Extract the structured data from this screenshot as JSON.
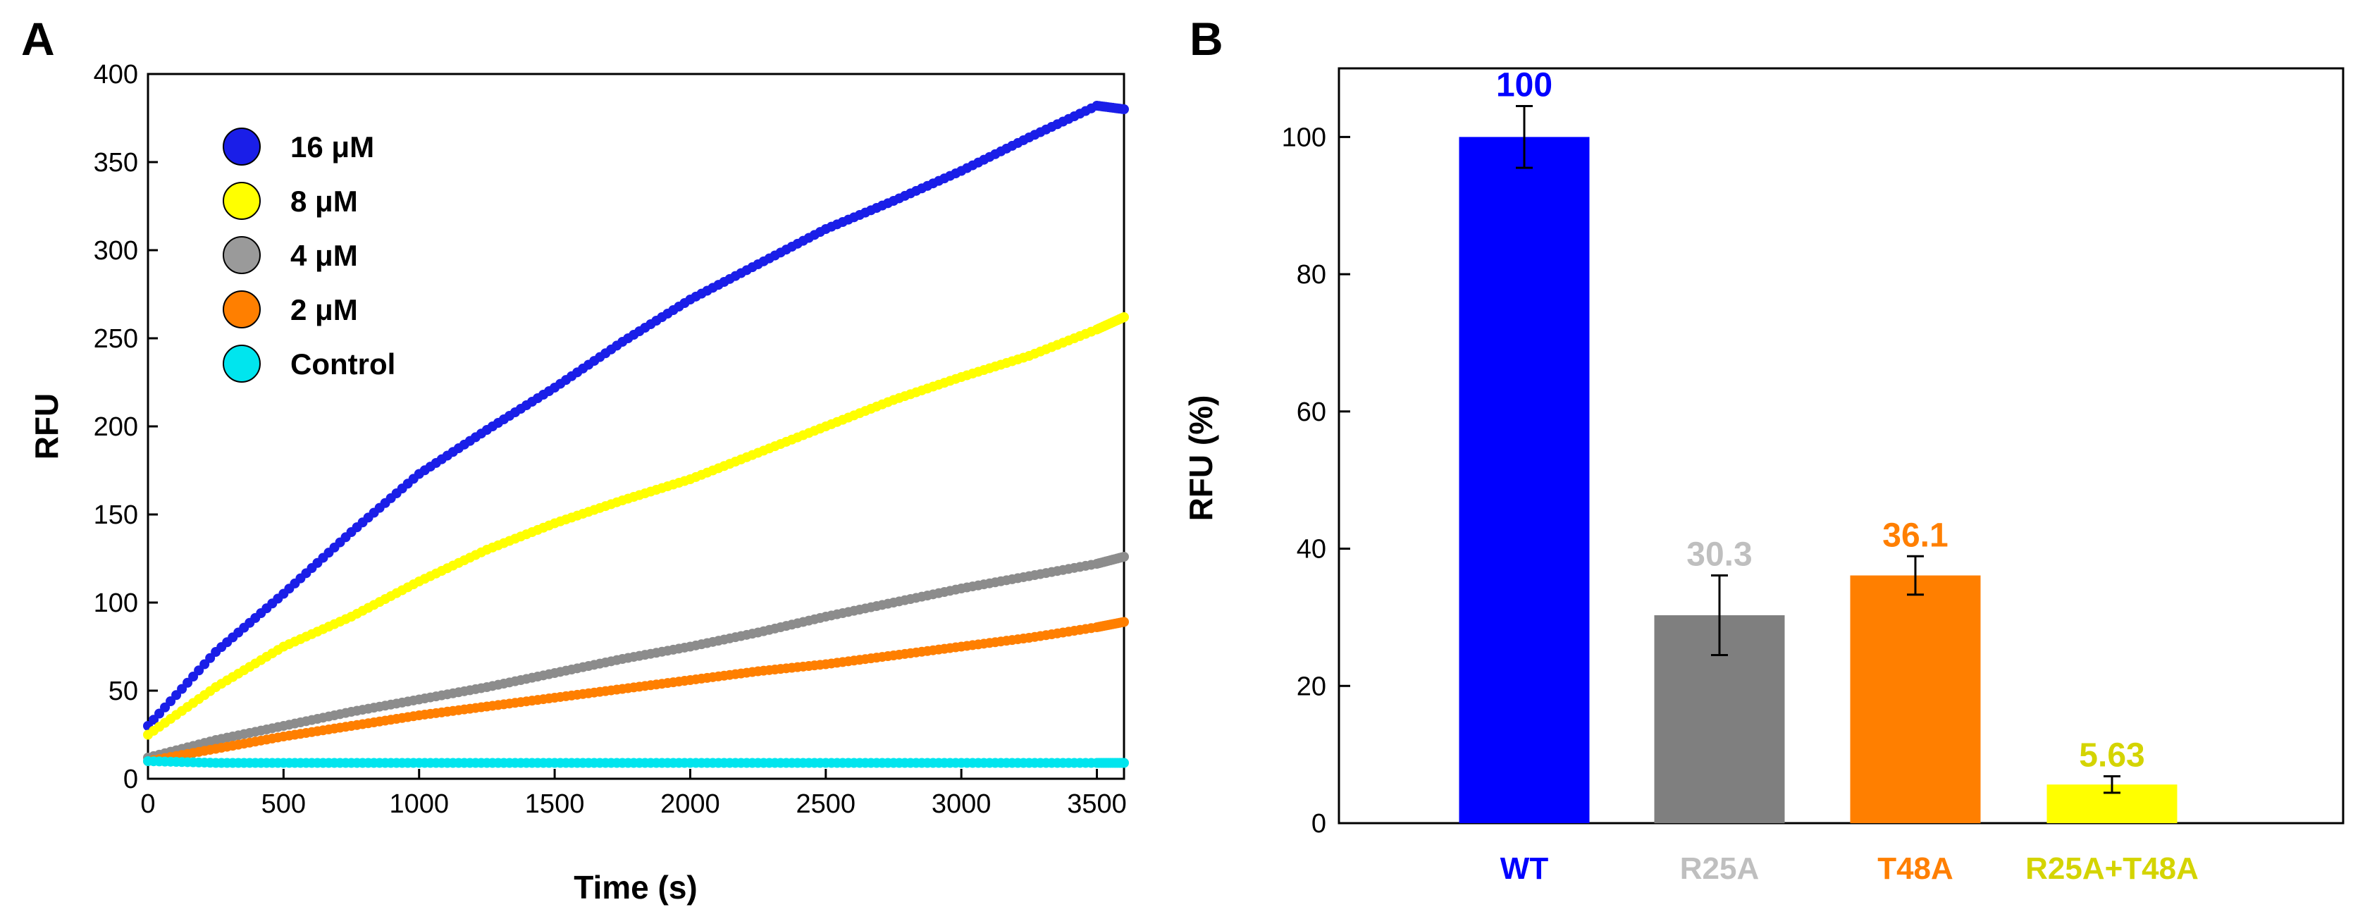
{
  "panels": {
    "a_letter": "A",
    "b_letter": "B"
  },
  "chart_data": [
    {
      "type": "scatter",
      "xlabel": "Time (s)",
      "ylabel": "RFU",
      "xlim": [
        0,
        3600
      ],
      "ylim": [
        0,
        400
      ],
      "xticks": [
        0,
        500,
        1000,
        1500,
        2000,
        2500,
        3000,
        3500
      ],
      "yticks": [
        0,
        50,
        100,
        150,
        200,
        250,
        300,
        350,
        400
      ],
      "legend": [
        {
          "label": "16 μM",
          "color": "#1a1ee8"
        },
        {
          "label": "8 μM",
          "color": "#ffff00"
        },
        {
          "label": "4 μM",
          "color": "#9a9a9a"
        },
        {
          "label": "2 μM",
          "color": "#ff7f00"
        },
        {
          "label": "Control",
          "color": "#00e5ee"
        }
      ],
      "series": [
        {
          "name": "16 μM",
          "color": "#1a1ee8",
          "x": [
            0,
            250,
            500,
            750,
            1000,
            1250,
            1500,
            1750,
            2000,
            2250,
            2500,
            2750,
            3000,
            3250,
            3500,
            3600
          ],
          "y": [
            30,
            72,
            105,
            140,
            173,
            198,
            222,
            248,
            272,
            292,
            312,
            328,
            345,
            364,
            382,
            380
          ]
        },
        {
          "name": "8 μM",
          "color": "#ffff00",
          "x": [
            0,
            250,
            500,
            750,
            1000,
            1250,
            1500,
            1750,
            2000,
            2250,
            2500,
            2750,
            3000,
            3250,
            3500,
            3600
          ],
          "y": [
            25,
            52,
            75,
            92,
            112,
            130,
            145,
            158,
            170,
            185,
            200,
            215,
            228,
            240,
            255,
            262
          ]
        },
        {
          "name": "4 μM",
          "color": "#8c8c8c",
          "x": [
            0,
            250,
            500,
            750,
            1000,
            1250,
            1500,
            1750,
            2000,
            2250,
            2500,
            2750,
            3000,
            3250,
            3500,
            3600
          ],
          "y": [
            12,
            22,
            30,
            38,
            45,
            52,
            60,
            68,
            75,
            83,
            92,
            100,
            108,
            115,
            122,
            126
          ]
        },
        {
          "name": "2 μM",
          "color": "#ff7f00",
          "x": [
            0,
            250,
            500,
            750,
            1000,
            1250,
            1500,
            1750,
            2000,
            2250,
            2500,
            2750,
            3000,
            3250,
            3500,
            3600
          ],
          "y": [
            10,
            17,
            24,
            30,
            36,
            41,
            46,
            51,
            56,
            61,
            65,
            70,
            75,
            80,
            86,
            89
          ]
        },
        {
          "name": "Control",
          "color": "#00e5ee",
          "x": [
            0,
            250,
            500,
            750,
            1000,
            1250,
            1500,
            1750,
            2000,
            2250,
            2500,
            2750,
            3000,
            3250,
            3500,
            3600
          ],
          "y": [
            10,
            9,
            9,
            9,
            9,
            9,
            9,
            9,
            9,
            9,
            9,
            9,
            9,
            9,
            9,
            9
          ]
        }
      ]
    },
    {
      "type": "bar",
      "ylabel": "RFU (%)",
      "ylim": [
        0,
        110
      ],
      "yticks": [
        0,
        20,
        40,
        60,
        80,
        100
      ],
      "categories": [
        "WT",
        "R25A",
        "T48A",
        "R25A+T48A"
      ],
      "values": [
        100,
        30.3,
        36.1,
        5.63
      ],
      "value_labels": [
        "100",
        "30.3",
        "36.1",
        "5.63"
      ],
      "errors": [
        4.5,
        5.8,
        2.8,
        1.2
      ],
      "colors": [
        "#0000ff",
        "#7f7f7f",
        "#ff7f00",
        "#ffff00"
      ],
      "label_colors": [
        "#0000ff",
        "#bfbfbf",
        "#ff7f00",
        "#d4d400"
      ]
    }
  ]
}
